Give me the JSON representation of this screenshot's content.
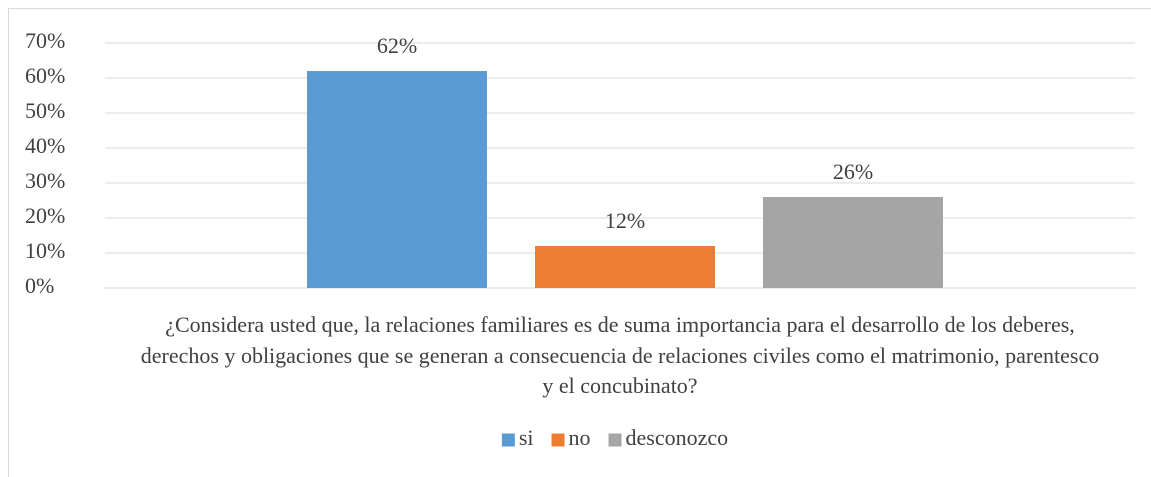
{
  "chart_data": {
    "type": "bar",
    "categories": [
      "¿Considera usted que, la relaciones familiares es de suma importancia para el desarrollo de los deberes, derechos y obligaciones que se generan a consecuencia de relaciones civiles como el matrimonio, parentesco y el concubinato?"
    ],
    "series": [
      {
        "name": "si",
        "color": "#5b9bd5",
        "values": [
          62
        ],
        "value_labels": [
          "62%"
        ]
      },
      {
        "name": "no",
        "color": "#ed7d31",
        "values": [
          12
        ],
        "value_labels": [
          "12%"
        ]
      },
      {
        "name": "desconozco",
        "color": "#a5a5a5",
        "values": [
          26
        ],
        "value_labels": [
          "26%"
        ]
      }
    ],
    "ylim": [
      0,
      70
    ],
    "yticks": [
      {
        "value": 0,
        "label": "0%"
      },
      {
        "value": 10,
        "label": "10%"
      },
      {
        "value": 20,
        "label": "20%"
      },
      {
        "value": 30,
        "label": "30%"
      },
      {
        "value": 40,
        "label": "40%"
      },
      {
        "value": 50,
        "label": "50%"
      },
      {
        "value": 60,
        "label": "60%"
      },
      {
        "value": 70,
        "label": "70%"
      }
    ],
    "grid": true,
    "legend": "bottom"
  }
}
